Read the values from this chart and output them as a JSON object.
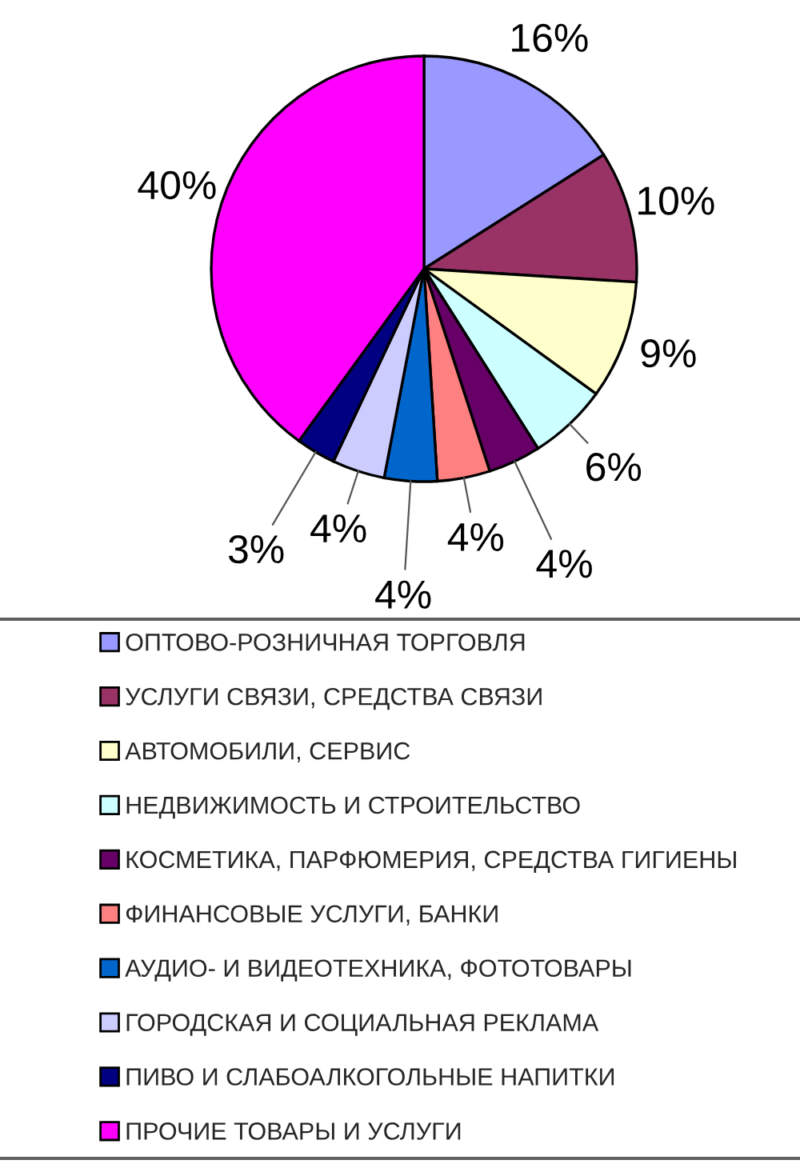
{
  "chart_data": {
    "type": "pie",
    "categories": [
      "ОПТОВО-РОЗНИЧНАЯ ТОРГОВЛЯ",
      "УСЛУГИ СВЯЗИ, СРЕДСТВА СВЯЗИ",
      "АВТОМОБИЛИ, СЕРВИС",
      "НЕДВИЖИМОСТЬ И СТРОИТЕЛЬСТВО",
      "КОСМЕТИКА, ПАРФЮМЕРИЯ, СРЕДСТВА ГИГИЕНЫ",
      "ФИНАНСОВЫЕ УСЛУГИ, БАНКИ",
      "АУДИО- И ВИДЕОТЕХНИКА, ФОТОТОВАРЫ",
      "ГОРОДСКАЯ И СОЦИАЛЬНАЯ РЕКЛАМА",
      "ПИВО И СЛАБОАЛКОГОЛЬНЫЕ НАПИТКИ",
      "ПРОЧИЕ ТОВАРЫ И УСЛУГИ"
    ],
    "values": [
      16,
      10,
      9,
      6,
      4,
      4,
      4,
      4,
      3,
      40
    ],
    "colors": [
      "#9999ff",
      "#993366",
      "#ffffcc",
      "#ccffff",
      "#660066",
      "#ff8080",
      "#0066cc",
      "#ccccff",
      "#000080",
      "#ff00ff"
    ],
    "value_labels": [
      "16%",
      "10%",
      "9%",
      "6%",
      "4%",
      "4%",
      "4%",
      "4%",
      "3%",
      "40%"
    ],
    "legend": "bottom"
  }
}
